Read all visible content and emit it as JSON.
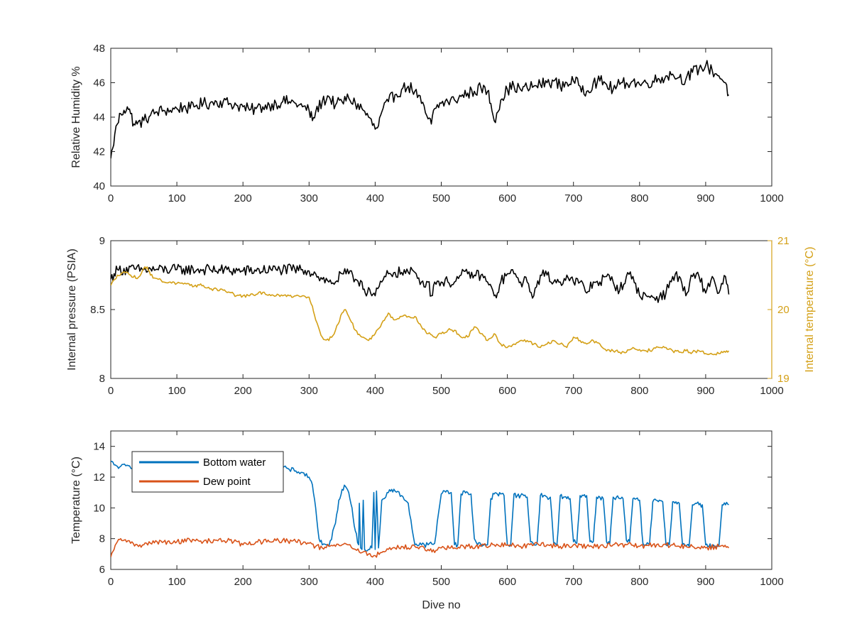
{
  "chart_data": [
    {
      "type": "line",
      "title": "",
      "xlabel": "",
      "ylabel": "Relative Humidity %",
      "xlim": [
        0,
        1000
      ],
      "ylim": [
        40,
        48
      ],
      "xticks": [
        0,
        100,
        200,
        300,
        400,
        500,
        600,
        700,
        800,
        900,
        1000
      ],
      "yticks": [
        40,
        42,
        44,
        46,
        48
      ],
      "grid": false,
      "series": [
        {
          "color": "#000000",
          "x": [
            0,
            3,
            6,
            10,
            15,
            20,
            25,
            30,
            35,
            40,
            50,
            60,
            70,
            80,
            90,
            100,
            110,
            120,
            130,
            140,
            150,
            160,
            170,
            180,
            190,
            200,
            210,
            220,
            230,
            240,
            250,
            260,
            270,
            280,
            290,
            300,
            305,
            310,
            320,
            330,
            340,
            350,
            360,
            370,
            380,
            390,
            400,
            405,
            410,
            420,
            430,
            440,
            450,
            460,
            470,
            480,
            485,
            490,
            500,
            510,
            520,
            530,
            540,
            550,
            560,
            570,
            575,
            580,
            590,
            600,
            610,
            620,
            630,
            640,
            650,
            660,
            670,
            680,
            690,
            700,
            710,
            720,
            730,
            740,
            750,
            760,
            770,
            780,
            790,
            800,
            810,
            820,
            830,
            840,
            850,
            860,
            870,
            880,
            890,
            900,
            910,
            920,
            930,
            935
          ],
          "values": [
            41.6,
            42.2,
            43.0,
            43.6,
            44.2,
            44.4,
            44.6,
            44.2,
            43.6,
            43.6,
            43.8,
            44.1,
            44.3,
            44.4,
            44.4,
            44.5,
            44.6,
            44.5,
            44.7,
            44.8,
            44.8,
            44.9,
            44.9,
            44.8,
            44.7,
            44.6,
            44.4,
            44.5,
            44.6,
            44.7,
            44.8,
            44.9,
            44.9,
            44.8,
            44.6,
            44.4,
            43.8,
            44.3,
            44.9,
            45.2,
            44.7,
            44.9,
            45.1,
            44.8,
            44.5,
            44.0,
            43.3,
            43.5,
            44.3,
            44.9,
            45.3,
            45.6,
            45.8,
            45.5,
            44.8,
            43.9,
            43.6,
            44.5,
            44.8,
            44.9,
            45.0,
            45.2,
            45.4,
            45.5,
            45.7,
            45.5,
            44.8,
            43.8,
            45.0,
            45.6,
            45.8,
            45.6,
            45.7,
            45.8,
            45.9,
            46.0,
            46.1,
            45.8,
            46.0,
            46.1,
            45.8,
            45.5,
            46.0,
            46.1,
            45.9,
            45.6,
            45.9,
            46.0,
            46.1,
            45.9,
            46.0,
            46.1,
            46.2,
            46.4,
            46.5,
            46.3,
            46.2,
            46.6,
            46.8,
            47.0,
            46.7,
            46.4,
            46.0,
            45.3
          ]
        }
      ]
    },
    {
      "type": "line",
      "title": "",
      "xlabel": "",
      "ylabel": "Internal pressure (PSIA)",
      "ylabel_right": "Internal temperature (°C)",
      "xlim": [
        0,
        1000
      ],
      "ylim": [
        8,
        9
      ],
      "ylim_right": [
        19,
        21
      ],
      "xticks": [
        0,
        100,
        200,
        300,
        400,
        500,
        600,
        700,
        800,
        900,
        1000
      ],
      "yticks": [
        8,
        8.5,
        9
      ],
      "yticks_right": [
        19,
        20,
        21
      ],
      "grid": false,
      "series": [
        {
          "axis": "left",
          "color": "#000000",
          "x": [
            0,
            5,
            10,
            50,
            100,
            150,
            200,
            250,
            290,
            300,
            310,
            320,
            330,
            340,
            350,
            360,
            370,
            380,
            385,
            390,
            395,
            400,
            410,
            420,
            430,
            440,
            450,
            460,
            470,
            480,
            485,
            490,
            500,
            510,
            520,
            530,
            540,
            550,
            560,
            570,
            580,
            585,
            590,
            600,
            610,
            620,
            630,
            640,
            650,
            660,
            670,
            680,
            690,
            700,
            710,
            720,
            730,
            740,
            750,
            760,
            770,
            780,
            790,
            800,
            810,
            820,
            830,
            840,
            850,
            860,
            870,
            880,
            890,
            900,
            910,
            920,
            930,
            935
          ],
          "values": [
            8.72,
            8.76,
            8.79,
            8.79,
            8.79,
            8.79,
            8.78,
            8.79,
            8.79,
            8.78,
            8.76,
            8.72,
            8.7,
            8.7,
            8.76,
            8.76,
            8.72,
            8.7,
            8.62,
            8.66,
            8.6,
            8.6,
            8.7,
            8.76,
            8.77,
            8.77,
            8.77,
            8.77,
            8.7,
            8.7,
            8.6,
            8.7,
            8.7,
            8.7,
            8.7,
            8.75,
            8.76,
            8.75,
            8.75,
            8.7,
            8.6,
            8.62,
            8.7,
            8.76,
            8.76,
            8.7,
            8.7,
            8.6,
            8.75,
            8.75,
            8.7,
            8.7,
            8.75,
            8.7,
            8.7,
            8.62,
            8.7,
            8.7,
            8.74,
            8.7,
            8.64,
            8.74,
            8.74,
            8.6,
            8.6,
            8.59,
            8.59,
            8.62,
            8.74,
            8.74,
            8.6,
            8.74,
            8.74,
            8.62,
            8.74,
            8.62,
            8.74,
            8.61
          ]
        },
        {
          "axis": "right",
          "color": "#D4A017",
          "x": [
            0,
            10,
            20,
            30,
            40,
            50,
            55,
            60,
            70,
            80,
            90,
            100,
            120,
            140,
            150,
            160,
            170,
            180,
            190,
            200,
            210,
            220,
            230,
            240,
            250,
            260,
            270,
            280,
            290,
            300,
            305,
            310,
            320,
            330,
            340,
            350,
            355,
            360,
            370,
            380,
            390,
            400,
            410,
            420,
            430,
            440,
            450,
            460,
            470,
            480,
            490,
            500,
            510,
            520,
            530,
            540,
            550,
            560,
            570,
            580,
            590,
            600,
            610,
            620,
            630,
            640,
            650,
            660,
            670,
            680,
            690,
            700,
            710,
            720,
            730,
            740,
            750,
            760,
            770,
            780,
            790,
            800,
            810,
            820,
            830,
            840,
            850,
            860,
            870,
            880,
            890,
            900,
            910,
            920,
            930,
            935
          ],
          "values": [
            20.35,
            20.5,
            20.55,
            20.5,
            20.45,
            20.6,
            20.62,
            20.5,
            20.45,
            20.4,
            20.4,
            20.38,
            20.35,
            20.35,
            20.3,
            20.3,
            20.28,
            20.25,
            20.2,
            20.2,
            20.2,
            20.22,
            20.25,
            20.22,
            20.2,
            20.2,
            20.2,
            20.2,
            20.2,
            20.18,
            20.05,
            19.85,
            19.6,
            19.55,
            19.7,
            19.95,
            20.0,
            19.9,
            19.7,
            19.6,
            19.55,
            19.65,
            19.8,
            19.95,
            19.85,
            19.9,
            19.9,
            19.9,
            19.75,
            19.65,
            19.6,
            19.65,
            19.7,
            19.7,
            19.6,
            19.6,
            19.75,
            19.65,
            19.55,
            19.65,
            19.5,
            19.45,
            19.5,
            19.55,
            19.55,
            19.5,
            19.45,
            19.5,
            19.55,
            19.5,
            19.45,
            19.6,
            19.55,
            19.5,
            19.55,
            19.5,
            19.4,
            19.4,
            19.38,
            19.38,
            19.45,
            19.42,
            19.4,
            19.42,
            19.45,
            19.45,
            19.4,
            19.38,
            19.4,
            19.38,
            19.4,
            19.36,
            19.35,
            19.36,
            19.38,
            19.4
          ]
        }
      ]
    },
    {
      "type": "line",
      "title": "",
      "xlabel": "Dive no",
      "ylabel": "Temperature (°C)",
      "xlim": [
        0,
        1000
      ],
      "ylim": [
        6,
        15
      ],
      "xticks": [
        0,
        100,
        200,
        300,
        400,
        500,
        600,
        700,
        800,
        900,
        1000
      ],
      "yticks": [
        6,
        8,
        10,
        12,
        14
      ],
      "grid": false,
      "legend": "top-left",
      "series": [
        {
          "name": "Bottom water",
          "color": "#0072BD",
          "x": [
            0,
            5,
            10,
            15,
            50,
            60,
            100,
            150,
            200,
            250,
            260,
            270,
            280,
            290,
            300,
            305,
            310,
            315,
            320,
            330,
            340,
            345,
            350,
            355,
            360,
            365,
            370,
            375,
            376,
            378,
            380,
            382,
            384,
            386,
            390,
            395,
            398,
            400,
            402,
            405,
            410,
            420,
            425,
            430,
            440,
            450,
            460,
            470,
            480,
            490,
            500,
            505,
            510,
            515,
            520,
            525,
            530,
            535,
            540,
            545,
            550,
            555,
            560,
            565,
            570,
            575,
            580,
            585,
            590,
            595,
            600,
            605,
            610,
            615,
            620,
            625,
            630,
            635,
            640,
            645,
            650,
            655,
            660,
            665,
            670,
            675,
            680,
            685,
            690,
            695,
            700,
            705,
            710,
            715,
            720,
            725,
            730,
            735,
            740,
            745,
            750,
            755,
            760,
            765,
            770,
            775,
            780,
            785,
            790,
            795,
            800,
            805,
            810,
            815,
            820,
            825,
            830,
            835,
            840,
            845,
            850,
            855,
            860,
            865,
            870,
            875,
            880,
            885,
            890,
            895,
            900,
            905,
            910,
            915,
            920,
            925,
            930,
            935
          ],
          "values": [
            13.0,
            12.8,
            12.7,
            12.7,
            12.7,
            12.9,
            12.9,
            12.9,
            12.8,
            12.6,
            12.6,
            12.5,
            12.4,
            12.3,
            12.0,
            11.5,
            10.0,
            8.0,
            7.6,
            7.5,
            9.0,
            10.5,
            11.2,
            11.4,
            11.0,
            10.0,
            8.5,
            7.6,
            10.3,
            7.4,
            7.3,
            10.5,
            7.3,
            7.2,
            7.3,
            7.4,
            11.0,
            7.3,
            11.1,
            7.4,
            10.5,
            11.0,
            11.2,
            11.1,
            10.8,
            10.3,
            7.6,
            7.6,
            7.6,
            7.7,
            10.9,
            11.1,
            11.1,
            11.0,
            7.6,
            7.6,
            10.9,
            11.1,
            11.0,
            10.9,
            8.0,
            7.6,
            7.6,
            7.6,
            7.6,
            10.6,
            10.9,
            10.9,
            10.9,
            10.8,
            7.6,
            7.6,
            10.9,
            10.8,
            10.8,
            10.8,
            10.7,
            7.8,
            7.6,
            7.7,
            10.8,
            10.8,
            10.7,
            10.7,
            7.7,
            7.6,
            10.8,
            10.7,
            10.6,
            10.6,
            7.8,
            7.7,
            10.8,
            10.8,
            10.8,
            7.8,
            7.8,
            10.7,
            10.7,
            10.6,
            7.8,
            7.7,
            10.7,
            10.7,
            10.6,
            10.6,
            7.9,
            7.8,
            10.6,
            10.6,
            10.5,
            7.7,
            7.6,
            7.6,
            10.4,
            10.5,
            10.5,
            10.4,
            7.6,
            7.6,
            10.4,
            10.4,
            10.3,
            7.6,
            7.5,
            7.5,
            10.2,
            10.3,
            10.2,
            10.2,
            7.6,
            7.5,
            7.5,
            7.4,
            7.5,
            10.2,
            10.2,
            10.2
          ]
        },
        {
          "name": "Dew point",
          "color": "#D95319",
          "x": [
            0,
            5,
            10,
            15,
            20,
            30,
            40,
            50,
            60,
            70,
            80,
            90,
            100,
            120,
            140,
            160,
            180,
            200,
            220,
            240,
            260,
            280,
            300,
            310,
            320,
            330,
            340,
            350,
            360,
            370,
            380,
            390,
            400,
            410,
            420,
            430,
            440,
            450,
            460,
            470,
            480,
            490,
            500,
            520,
            540,
            560,
            580,
            600,
            620,
            640,
            660,
            680,
            700,
            720,
            740,
            760,
            780,
            800,
            820,
            840,
            860,
            880,
            900,
            920,
            935
          ],
          "values": [
            6.8,
            7.3,
            7.8,
            8.0,
            7.9,
            7.7,
            7.6,
            7.6,
            7.7,
            7.8,
            7.8,
            7.7,
            7.8,
            7.9,
            7.8,
            7.9,
            7.9,
            7.6,
            7.8,
            7.8,
            7.9,
            7.8,
            7.7,
            7.5,
            7.4,
            7.5,
            7.5,
            7.6,
            7.6,
            7.3,
            7.1,
            7.0,
            6.9,
            7.1,
            7.3,
            7.4,
            7.5,
            7.4,
            7.5,
            7.5,
            7.3,
            7.1,
            7.4,
            7.4,
            7.5,
            7.5,
            7.6,
            7.6,
            7.5,
            7.6,
            7.6,
            7.5,
            7.6,
            7.5,
            7.5,
            7.6,
            7.6,
            7.5,
            7.6,
            7.6,
            7.5,
            7.5,
            7.4,
            7.5,
            7.4
          ]
        }
      ]
    }
  ]
}
